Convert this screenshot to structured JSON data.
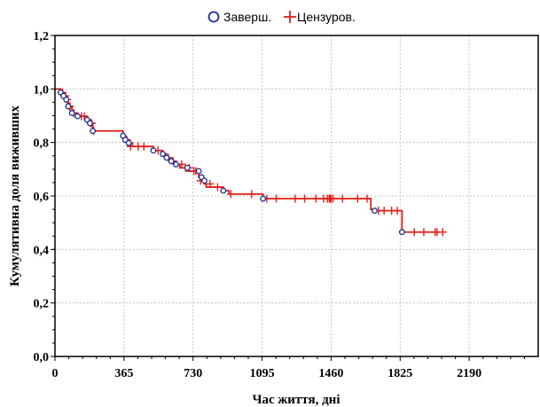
{
  "chart_data": {
    "type": "line",
    "subtype": "kaplan-meier survival step",
    "title": "",
    "xlabel": "Час життя, дні",
    "ylabel": "Кумулятивна доля виживших",
    "xlim": [
      0,
      2555
    ],
    "ylim": [
      0,
      1.2
    ],
    "x_ticks": [
      0,
      365,
      730,
      1095,
      1460,
      1825,
      2190
    ],
    "x_tick_labels": [
      "0",
      "365",
      "730",
      "1095",
      "1460",
      "1825",
      "2190"
    ],
    "y_ticks": [
      0,
      0.2,
      0.4,
      0.6,
      0.8,
      1.0,
      1.2
    ],
    "y_tick_labels": [
      "0,0",
      "0,2",
      "0,4",
      "0,6",
      "0,8",
      "1,0",
      "1,2"
    ],
    "grid": true,
    "legend": {
      "position": "top-center",
      "entries": [
        {
          "label": "Заверш.",
          "marker": "circle",
          "color": "#1f2f8f"
        },
        {
          "label": "Цензуров.",
          "marker": "plus",
          "color": "#e0201b"
        }
      ]
    },
    "colors": {
      "line": "#e0201b",
      "event": "#1f2f8f",
      "censor": "#e0201b",
      "grid": "#b8b8b8"
    },
    "curve": {
      "x": [
        0,
        30,
        45,
        60,
        70,
        90,
        120,
        170,
        185,
        200,
        360,
        372,
        390,
        410,
        520,
        570,
        590,
        615,
        640,
        660,
        700,
        760,
        775,
        790,
        800,
        890,
        920,
        1100,
        1670,
        1690,
        1835,
        2030
      ],
      "y": [
        1.0,
        0.987,
        0.974,
        0.96,
        0.935,
        0.91,
        0.898,
        0.885,
        0.872,
        0.843,
        0.825,
        0.81,
        0.798,
        0.785,
        0.77,
        0.757,
        0.743,
        0.73,
        0.718,
        0.705,
        0.693,
        0.67,
        0.657,
        0.645,
        0.633,
        0.62,
        0.607,
        0.59,
        0.55,
        0.545,
        0.465,
        0.465
      ]
    },
    "events": {
      "x": [
        30,
        45,
        60,
        70,
        90,
        120,
        170,
        185,
        200,
        360,
        372,
        390,
        520,
        570,
        590,
        615,
        640,
        700,
        760,
        775,
        790,
        890,
        1100,
        1690,
        1835
      ],
      "y": [
        0.987,
        0.974,
        0.96,
        0.935,
        0.91,
        0.898,
        0.885,
        0.872,
        0.843,
        0.825,
        0.81,
        0.798,
        0.77,
        0.757,
        0.743,
        0.73,
        0.718,
        0.705,
        0.693,
        0.67,
        0.657,
        0.62,
        0.59,
        0.545,
        0.465
      ]
    },
    "censored": {
      "x": [
        40,
        55,
        65,
        75,
        80,
        100,
        140,
        155,
        190,
        195,
        205,
        380,
        400,
        440,
        470,
        545,
        600,
        625,
        670,
        690,
        710,
        735,
        745,
        770,
        820,
        860,
        930,
        1040,
        1120,
        1170,
        1270,
        1320,
        1380,
        1420,
        1440,
        1450,
        1455,
        1460,
        1470,
        1520,
        1600,
        1650,
        1710,
        1740,
        1780,
        1810,
        1900,
        1950,
        2010,
        2020,
        2050
      ],
      "y": [
        0.987,
        0.974,
        0.96,
        0.935,
        0.935,
        0.91,
        0.898,
        0.898,
        0.872,
        0.872,
        0.843,
        0.81,
        0.785,
        0.785,
        0.785,
        0.77,
        0.743,
        0.73,
        0.718,
        0.705,
        0.705,
        0.693,
        0.693,
        0.657,
        0.645,
        0.633,
        0.607,
        0.607,
        0.59,
        0.59,
        0.59,
        0.59,
        0.59,
        0.59,
        0.59,
        0.59,
        0.59,
        0.59,
        0.59,
        0.59,
        0.59,
        0.59,
        0.545,
        0.545,
        0.545,
        0.545,
        0.465,
        0.465,
        0.465,
        0.465,
        0.465
      ]
    }
  }
}
